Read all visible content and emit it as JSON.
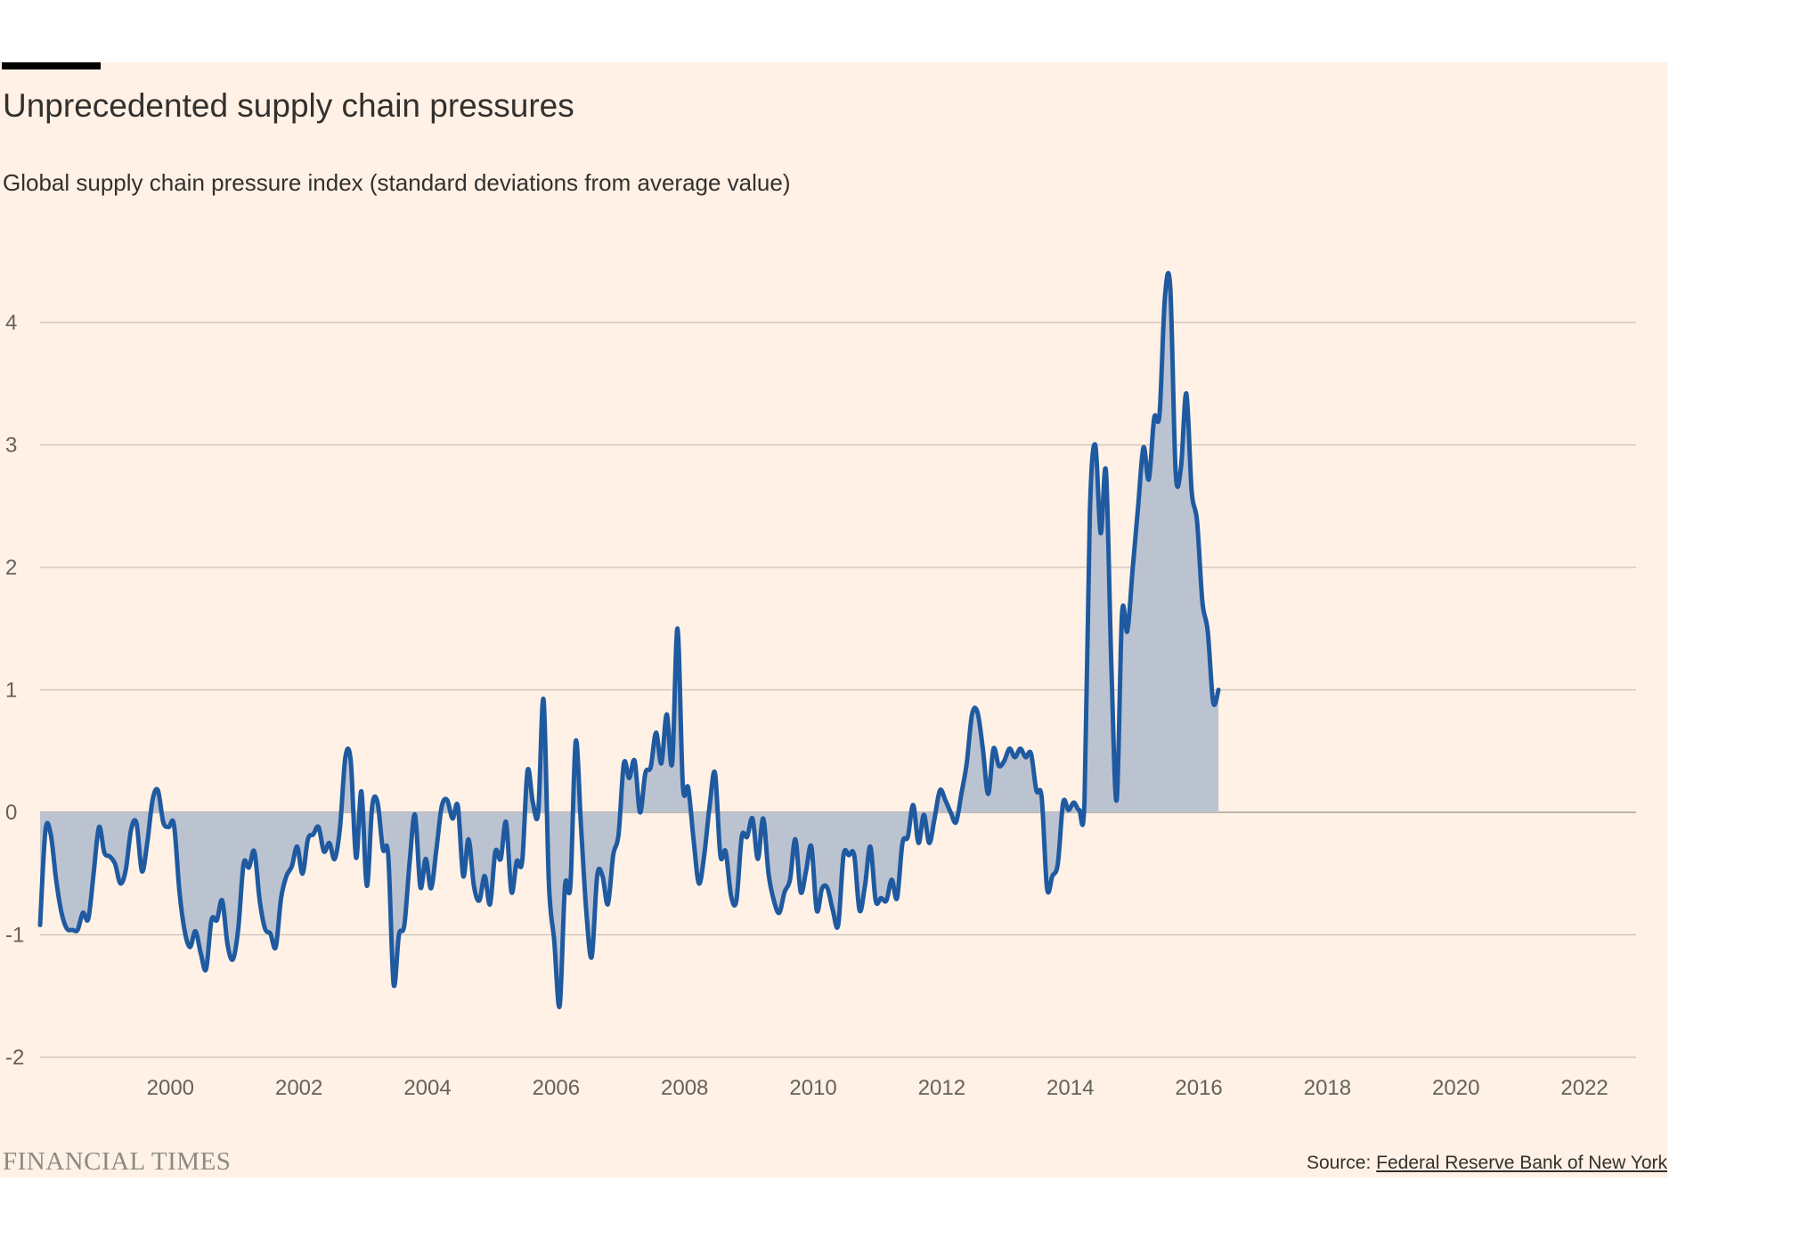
{
  "header": {
    "title": "Unprecedented supply chain pressures",
    "subtitle": "Global supply chain pressure index (standard deviations from average value)"
  },
  "footer": {
    "brand": "FINANCIAL TIMES",
    "source_label": "Source: ",
    "source_link": "Federal Reserve Bank of New York"
  },
  "colors": {
    "background": "#fff1e5",
    "line": "#1f5aa1",
    "fill": "#bcc3d0",
    "grid": "#c9c1b9",
    "zero_line": "#a7a19c",
    "text": "#33302e"
  },
  "chart_data": {
    "type": "area",
    "title": "Unprecedented supply chain pressures",
    "subtitle": "Global supply chain pressure index (standard deviations from average value)",
    "xlabel": "",
    "ylabel": "",
    "xlim": [
      1998.0,
      2022.83
    ],
    "ylim": [
      -2,
      4.5
    ],
    "yticks": [
      -2,
      -1,
      0,
      1,
      2,
      3,
      4
    ],
    "ytick_labels": [
      "-2",
      "-1",
      "0",
      "1",
      "2",
      "3",
      "4"
    ],
    "xticks": [
      2000,
      2002,
      2004,
      2006,
      2008,
      2010,
      2012,
      2014,
      2016,
      2018,
      2020,
      2022
    ],
    "xtick_labels": [
      "2000",
      "2002",
      "2004",
      "2006",
      "2008",
      "2010",
      "2012",
      "2014",
      "2016",
      "2018",
      "2020",
      "2022"
    ],
    "grid": true,
    "legend": "none",
    "series": [
      {
        "name": "Global supply chain pressure index",
        "start": 1998.0,
        "step": 0.08333,
        "values": [
          -0.92,
          -0.15,
          -0.18,
          -0.55,
          -0.82,
          -0.95,
          -0.96,
          -0.96,
          -0.82,
          -0.87,
          -0.5,
          -0.12,
          -0.33,
          -0.36,
          -0.42,
          -0.58,
          -0.47,
          -0.14,
          -0.09,
          -0.48,
          -0.25,
          0.1,
          0.18,
          -0.08,
          -0.12,
          -0.1,
          -0.64,
          -0.97,
          -1.1,
          -0.97,
          -1.15,
          -1.28,
          -0.88,
          -0.88,
          -0.72,
          -1.08,
          -1.2,
          -0.95,
          -0.42,
          -0.45,
          -0.32,
          -0.72,
          -0.95,
          -0.99,
          -1.1,
          -0.7,
          -0.52,
          -0.44,
          -0.28,
          -0.5,
          -0.22,
          -0.18,
          -0.12,
          -0.32,
          -0.25,
          -0.38,
          -0.12,
          0.45,
          0.42,
          -0.37,
          0.17,
          -0.6,
          0.05,
          0.08,
          -0.3,
          -0.35,
          -1.4,
          -1.0,
          -0.92,
          -0.4,
          -0.02,
          -0.61,
          -0.38,
          -0.62,
          -0.3,
          0.05,
          0.1,
          -0.05,
          0.05,
          -0.52,
          -0.22,
          -0.6,
          -0.72,
          -0.52,
          -0.75,
          -0.32,
          -0.38,
          -0.08,
          -0.65,
          -0.4,
          -0.4,
          0.34,
          0.08,
          0.0,
          0.92,
          -0.58,
          -1.05,
          -1.58,
          -0.6,
          -0.6,
          0.58,
          -0.12,
          -0.82,
          -1.18,
          -0.52,
          -0.52,
          -0.75,
          -0.35,
          -0.18,
          0.4,
          0.28,
          0.42,
          0.0,
          0.32,
          0.37,
          0.65,
          0.4,
          0.8,
          0.4,
          1.5,
          0.22,
          0.2,
          -0.22,
          -0.58,
          -0.35,
          0.05,
          0.32,
          -0.35,
          -0.32,
          -0.68,
          -0.72,
          -0.2,
          -0.2,
          -0.05,
          -0.38,
          -0.05,
          -0.5,
          -0.72,
          -0.82,
          -0.65,
          -0.55,
          -0.22,
          -0.65,
          -0.48,
          -0.28,
          -0.8,
          -0.62,
          -0.62,
          -0.8,
          -0.92,
          -0.35,
          -0.35,
          -0.35,
          -0.8,
          -0.6,
          -0.28,
          -0.72,
          -0.7,
          -0.72,
          -0.55,
          -0.7,
          -0.25,
          -0.2,
          0.06,
          -0.25,
          -0.02,
          -0.25,
          -0.05,
          0.18,
          0.1,
          0.0,
          -0.08,
          0.15,
          0.4,
          0.8,
          0.82,
          0.52,
          0.15,
          0.52,
          0.38,
          0.42,
          0.52,
          0.45,
          0.52,
          0.45,
          0.48,
          0.18,
          0.12,
          -0.62,
          -0.52,
          -0.42,
          0.08,
          0.02,
          0.08,
          0.02,
          0.1,
          2.45,
          3.0,
          2.28,
          2.78,
          1.2,
          0.1,
          1.62,
          1.48,
          2.0,
          2.5,
          2.98,
          2.72,
          3.22,
          3.25,
          4.2,
          4.28,
          2.78,
          2.82,
          3.42,
          2.62,
          2.38,
          1.72,
          1.48,
          0.9,
          1.0
        ]
      }
    ]
  }
}
